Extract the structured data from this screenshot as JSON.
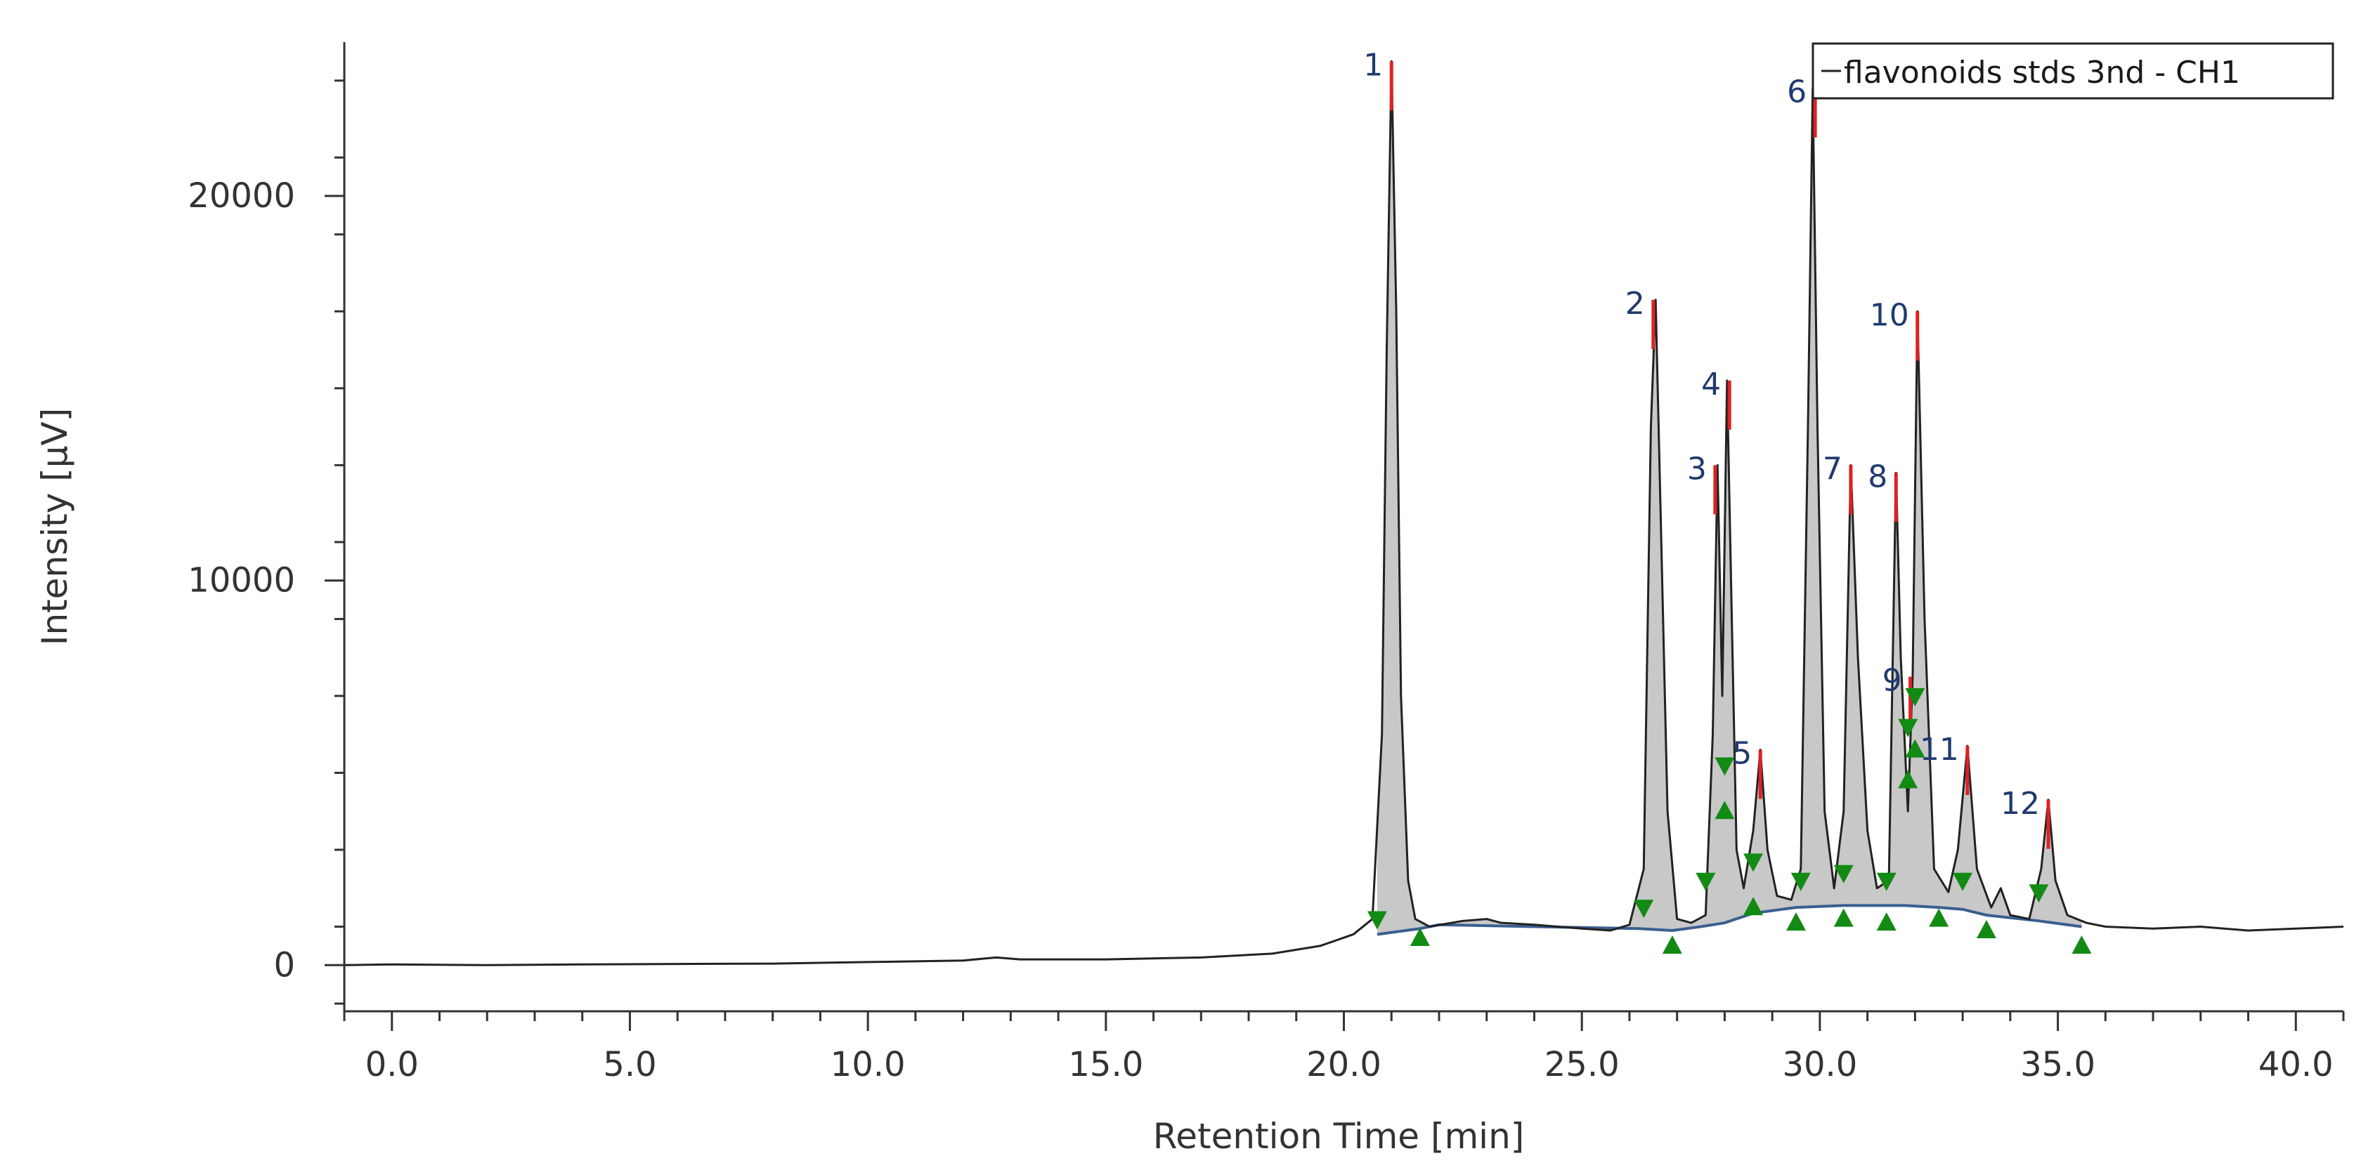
{
  "chart_data": {
    "type": "line",
    "title": "",
    "xlabel": "Retention Time [min]",
    "ylabel": "Intensity [µV]",
    "xlim": [
      -1.0,
      41.0
    ],
    "ylim": [
      -1200,
      24000
    ],
    "x_ticks": [
      0.0,
      5.0,
      10.0,
      15.0,
      20.0,
      25.0,
      30.0,
      35.0,
      40.0
    ],
    "x_tick_labels": [
      "0.0",
      "5.0",
      "10.0",
      "15.0",
      "20.0",
      "25.0",
      "30.0",
      "35.0",
      "40.0"
    ],
    "y_ticks": [
      0,
      10000,
      20000
    ],
    "y_tick_labels": [
      "0",
      "10000",
      "20000"
    ],
    "grid": false,
    "legend": {
      "position": "top-right",
      "entries": [
        "flavonoids stds 3nd - CH1"
      ]
    },
    "series": [
      {
        "name": "flavonoids stds 3nd - CH1",
        "color": "#222222",
        "x": [
          -1.0,
          0.0,
          2.0,
          4.0,
          6.0,
          8.0,
          10.0,
          12.0,
          12.7,
          13.2,
          15.0,
          17.0,
          18.5,
          19.5,
          20.2,
          20.6,
          20.8,
          20.9,
          21.0,
          21.1,
          21.2,
          21.35,
          21.5,
          21.8,
          22.5,
          23.0,
          23.3,
          24.0,
          25.0,
          25.6,
          26.0,
          26.3,
          26.45,
          26.55,
          26.65,
          26.8,
          27.0,
          27.3,
          27.6,
          27.75,
          27.85,
          27.95,
          28.05,
          28.15,
          28.25,
          28.4,
          28.6,
          28.75,
          28.9,
          29.1,
          29.4,
          29.6,
          29.75,
          29.85,
          29.95,
          30.1,
          30.3,
          30.5,
          30.65,
          30.8,
          31.0,
          31.2,
          31.45,
          31.6,
          31.7,
          31.85,
          31.95,
          32.05,
          32.2,
          32.4,
          32.7,
          32.9,
          33.1,
          33.3,
          33.6,
          33.8,
          34.0,
          34.4,
          34.65,
          34.8,
          34.95,
          35.2,
          35.6,
          36.0,
          37.0,
          38.0,
          39.0,
          40.0,
          41.0
        ],
        "y": [
          0,
          20,
          0,
          20,
          30,
          40,
          80,
          120,
          200,
          150,
          150,
          200,
          300,
          500,
          800,
          1200,
          6000,
          16000,
          23500,
          17000,
          7000,
          2200,
          1200,
          1000,
          1150,
          1200,
          1100,
          1050,
          950,
          900,
          1050,
          2500,
          14000,
          17300,
          12000,
          4000,
          1200,
          1100,
          1300,
          6000,
          13000,
          7000,
          15200,
          9000,
          3000,
          2000,
          3500,
          5600,
          3000,
          1800,
          1700,
          2500,
          14000,
          22800,
          14000,
          4000,
          2000,
          4000,
          13000,
          8000,
          3500,
          2000,
          2200,
          12800,
          8000,
          4000,
          7500,
          17000,
          9000,
          2500,
          1900,
          3000,
          5700,
          2500,
          1500,
          2000,
          1300,
          1200,
          2500,
          4300,
          2200,
          1300,
          1100,
          1000,
          950,
          1000,
          900,
          950,
          1000
        ]
      }
    ],
    "baseline": {
      "x": [
        20.7,
        21.6,
        22.0,
        24.0,
        26.2,
        26.9,
        27.5,
        28.0,
        28.6,
        29.5,
        30.5,
        31.4,
        31.8,
        32.5,
        33.0,
        33.5,
        34.6,
        35.5
      ],
      "y": [
        800,
        950,
        1050,
        1000,
        950,
        900,
        1000,
        1100,
        1350,
        1500,
        1550,
        1550,
        1550,
        1500,
        1450,
        1300,
        1150,
        1000
      ]
    },
    "peaks": [
      {
        "label": "1",
        "x": 21.0,
        "y": 23500
      },
      {
        "label": "2",
        "x": 26.5,
        "y": 17300
      },
      {
        "label": "3",
        "x": 27.8,
        "y": 13000
      },
      {
        "label": "4",
        "x": 28.1,
        "y": 15200
      },
      {
        "label": "5",
        "x": 28.75,
        "y": 5600
      },
      {
        "label": "6",
        "x": 29.9,
        "y": 22800
      },
      {
        "label": "7",
        "x": 30.65,
        "y": 13000
      },
      {
        "label": "8",
        "x": 31.6,
        "y": 12800
      },
      {
        "label": "9",
        "x": 31.9,
        "y": 7500
      },
      {
        "label": "10",
        "x": 32.05,
        "y": 17000
      },
      {
        "label": "11",
        "x": 33.1,
        "y": 5700
      },
      {
        "label": "12",
        "x": 34.8,
        "y": 4300
      }
    ],
    "peak_start_markers": [
      {
        "x": 20.7,
        "y": 1000
      },
      {
        "x": 26.3,
        "y": 1300
      },
      {
        "x": 27.6,
        "y": 2000
      },
      {
        "x": 28.0,
        "y": 5000
      },
      {
        "x": 28.6,
        "y": 2500
      },
      {
        "x": 29.6,
        "y": 2000
      },
      {
        "x": 30.5,
        "y": 2200
      },
      {
        "x": 31.4,
        "y": 2000
      },
      {
        "x": 31.85,
        "y": 6000
      },
      {
        "x": 32.0,
        "y": 6800
      },
      {
        "x": 33.0,
        "y": 2000
      },
      {
        "x": 34.6,
        "y": 1700
      }
    ],
    "peak_end_markers": [
      {
        "x": 21.6,
        "y": 900
      },
      {
        "x": 26.9,
        "y": 700
      },
      {
        "x": 28.0,
        "y": 4200
      },
      {
        "x": 28.6,
        "y": 1700
      },
      {
        "x": 29.5,
        "y": 1300
      },
      {
        "x": 30.5,
        "y": 1400
      },
      {
        "x": 31.4,
        "y": 1300
      },
      {
        "x": 31.85,
        "y": 5000
      },
      {
        "x": 32.0,
        "y": 5800
      },
      {
        "x": 32.5,
        "y": 1400
      },
      {
        "x": 33.5,
        "y": 1100
      },
      {
        "x": 35.5,
        "y": 700
      }
    ],
    "colors": {
      "trace": "#222222",
      "peak_fill": "#c8c8c8",
      "baseline": "#3a5f8f",
      "apex": "#dd2222",
      "marker": "#138a13",
      "peak_label": "#1f3a6e"
    }
  }
}
